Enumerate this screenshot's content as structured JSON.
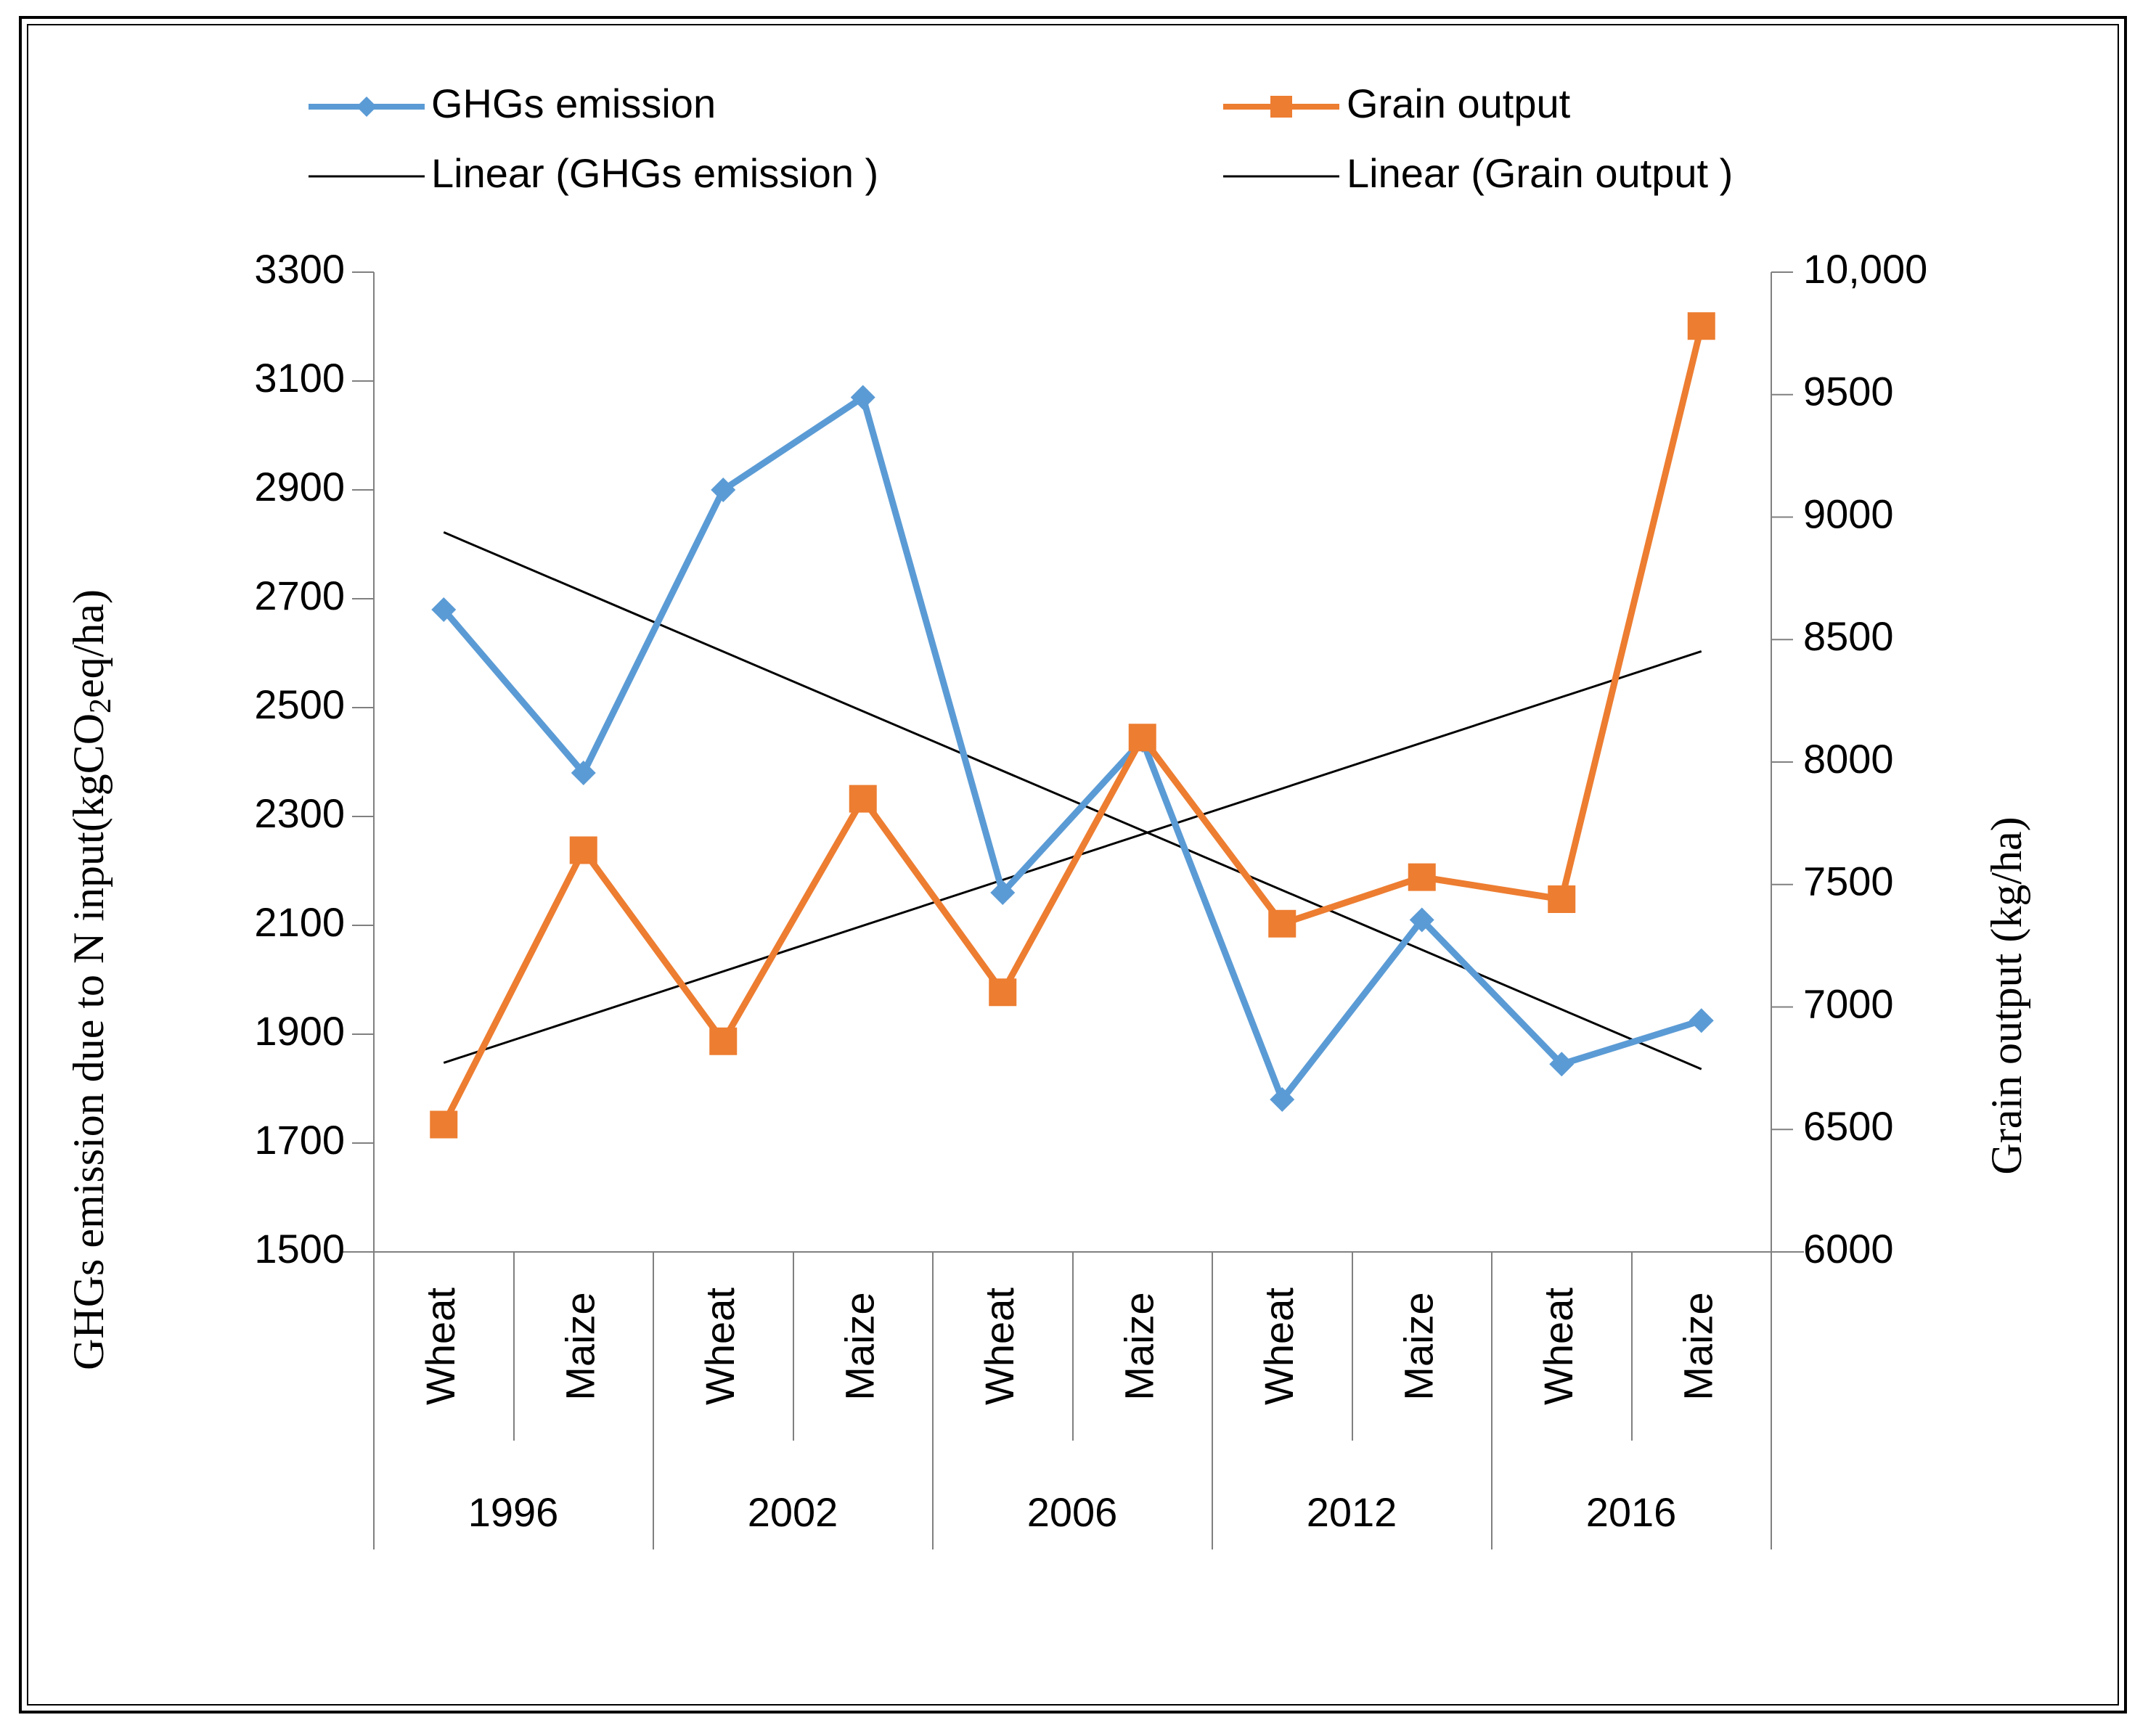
{
  "chart_data": {
    "type": "line",
    "title": "",
    "crops": [
      "Wheat",
      "Maize",
      "Wheat",
      "Maize",
      "Wheat",
      "Maize",
      "Wheat",
      "Maize",
      "Wheat",
      "Maize"
    ],
    "years": [
      "1996",
      "2002",
      "2006",
      "2012",
      "2016"
    ],
    "y_left": {
      "label_prefix": "GHGs emission due to N input(kgCO",
      "label_sub": "2",
      "label_suffix": "eq/ha)",
      "ylim": [
        1500,
        3300
      ],
      "ticks": [
        "1500",
        "1700",
        "1900",
        "2100",
        "2300",
        "2500",
        "2700",
        "2900",
        "3100",
        "3300"
      ]
    },
    "y_right": {
      "label": "Grain output (kg/ha)",
      "ylim": [
        6000,
        10000
      ],
      "ticks": [
        "6000",
        "6500",
        "7000",
        "7500",
        "8000",
        "8500",
        "9000",
        "9500",
        "10,000"
      ]
    },
    "series": [
      {
        "name": "GHGs emission",
        "axis": "left",
        "color": "#5b9bd5",
        "marker": "diamond",
        "values": [
          2680,
          2380,
          2900,
          3070,
          2160,
          2440,
          1780,
          2110,
          1845,
          1925
        ]
      },
      {
        "name": "Grain output",
        "axis": "right",
        "color": "#ed7d31",
        "marker": "square",
        "values": [
          6520,
          7640,
          6860,
          7850,
          7060,
          8100,
          7340,
          7530,
          7440,
          9780
        ]
      }
    ],
    "trendlines": [
      {
        "name": "Linear (GHGs emission )",
        "of_series": 0,
        "color": "#000000"
      },
      {
        "name": "Linear (Grain output )",
        "of_series": 1,
        "color": "#000000"
      }
    ],
    "legend": {
      "placement": "top",
      "entries": [
        "GHGs emission",
        "Grain output",
        "Linear (GHGs emission )",
        "Linear (Grain output )"
      ]
    }
  }
}
